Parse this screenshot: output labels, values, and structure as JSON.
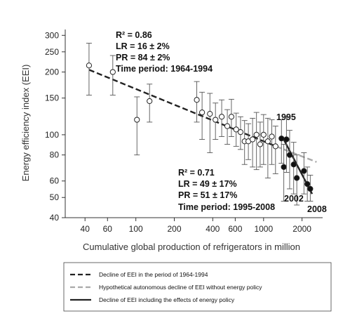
{
  "chart_data": {
    "type": "scatter",
    "xscale": "log",
    "yscale": "log",
    "xlabel": "Cumulative global production of refrigerators in million",
    "ylabel": "Energy efficiency index (EEI)",
    "xlim": [
      28,
      2900
    ],
    "ylim": [
      40,
      320
    ],
    "x_ticks": [
      40,
      60,
      100,
      200,
      400,
      600,
      1000,
      2000
    ],
    "y_ticks": [
      40,
      50,
      60,
      80,
      100,
      150,
      200,
      250,
      300
    ],
    "open_points": [
      {
        "x": 43,
        "y": 215,
        "err": [
          155,
          275
        ]
      },
      {
        "x": 66,
        "y": 200,
        "err": [
          155,
          240
        ]
      },
      {
        "x": 102,
        "y": 118,
        "err": [
          80,
          152
        ]
      },
      {
        "x": 128,
        "y": 145,
        "err": [
          115,
          175
        ]
      },
      {
        "x": 300,
        "y": 147,
        "err": [
          115,
          180
        ]
      },
      {
        "x": 330,
        "y": 128,
        "err": [
          95,
          160
        ]
      },
      {
        "x": 380,
        "y": 126,
        "err": [
          82,
          158
        ]
      },
      {
        "x": 420,
        "y": 118,
        "err": [
          95,
          142
        ]
      },
      {
        "x": 470,
        "y": 122,
        "err": [
          98,
          147
        ]
      },
      {
        "x": 520,
        "y": 110,
        "err": [
          90,
          132
        ]
      },
      {
        "x": 560,
        "y": 122,
        "err": [
          98,
          148
        ]
      },
      {
        "x": 610,
        "y": 106,
        "err": [
          88,
          127
        ]
      },
      {
        "x": 660,
        "y": 103,
        "err": [
          85,
          122
        ]
      },
      {
        "x": 710,
        "y": 93,
        "err": [
          72,
          117
        ]
      },
      {
        "x": 760,
        "y": 93,
        "err": [
          76,
          113
        ]
      },
      {
        "x": 820,
        "y": 95,
        "err": [
          70,
          120
        ]
      },
      {
        "x": 880,
        "y": 100,
        "err": [
          68,
          128
        ]
      },
      {
        "x": 940,
        "y": 90,
        "err": [
          70,
          115
        ]
      },
      {
        "x": 1000,
        "y": 100,
        "err": [
          72,
          125
        ]
      },
      {
        "x": 1080,
        "y": 93,
        "err": [
          62,
          120
        ]
      },
      {
        "x": 1160,
        "y": 98,
        "err": [
          72,
          118
        ]
      },
      {
        "x": 1240,
        "y": 88,
        "err": [
          65,
          110
        ]
      }
    ],
    "filled_points": [
      {
        "x": 1380,
        "y": 96,
        "err": [
          73,
          118
        ]
      },
      {
        "x": 1440,
        "y": 70,
        "err": [
          48,
          90
        ]
      },
      {
        "x": 1510,
        "y": 95,
        "err": [
          66,
          122
        ]
      },
      {
        "x": 1600,
        "y": 80,
        "err": [
          55,
          105
        ]
      },
      {
        "x": 1720,
        "y": 72,
        "err": [
          52,
          92
        ]
      },
      {
        "x": 1820,
        "y": 62,
        "err": [
          46,
          80
        ]
      },
      {
        "x": 2070,
        "y": 67,
        "err": [
          52,
          82
        ]
      },
      {
        "x": 2200,
        "y": 58,
        "err": [
          48,
          70
        ]
      },
      {
        "x": 2320,
        "y": 55,
        "err": [
          48,
          64
        ]
      }
    ],
    "lines": [
      {
        "name": "Decline of EEI in the period of 1964-1994",
        "style": "dashed",
        "color": "#222222",
        "points": [
          [
            43,
            205
          ],
          [
            1250,
            88
          ]
        ]
      },
      {
        "name": "Hypothetical autonomous decline of EEI without energy policy",
        "style": "dashed",
        "color": "#aaaaaa",
        "points": [
          [
            1250,
            88
          ],
          [
            2600,
            74
          ]
        ]
      },
      {
        "name": "Decline of EEI including the effects of energy policy",
        "style": "solid",
        "color": "#222222",
        "points": [
          [
            1400,
            98
          ],
          [
            2400,
            52
          ]
        ]
      }
    ],
    "annotations": {
      "early": [
        "R² = 0.86",
        "LR = 16 ± 2%",
        "PR = 84 ± 2%",
        "Time period: 1964-1994"
      ],
      "late": [
        "R² = 0.71",
        "LR = 49 ± 17%",
        "PR = 51 ± 17%",
        "Time period: 1995-2008"
      ],
      "year_labels": [
        "1995",
        "2002",
        "2008"
      ]
    }
  },
  "legend": {
    "items": [
      {
        "label": "Decline of EEI in the period of 1964-1994",
        "style": "dashed",
        "color": "#222222"
      },
      {
        "label": "Hypothetical autonomous decline of EEI without energy policy",
        "style": "dashed",
        "color": "#aaaaaa"
      },
      {
        "label": "Decline of EEI including the effects of energy policy",
        "style": "solid",
        "color": "#222222"
      }
    ]
  }
}
